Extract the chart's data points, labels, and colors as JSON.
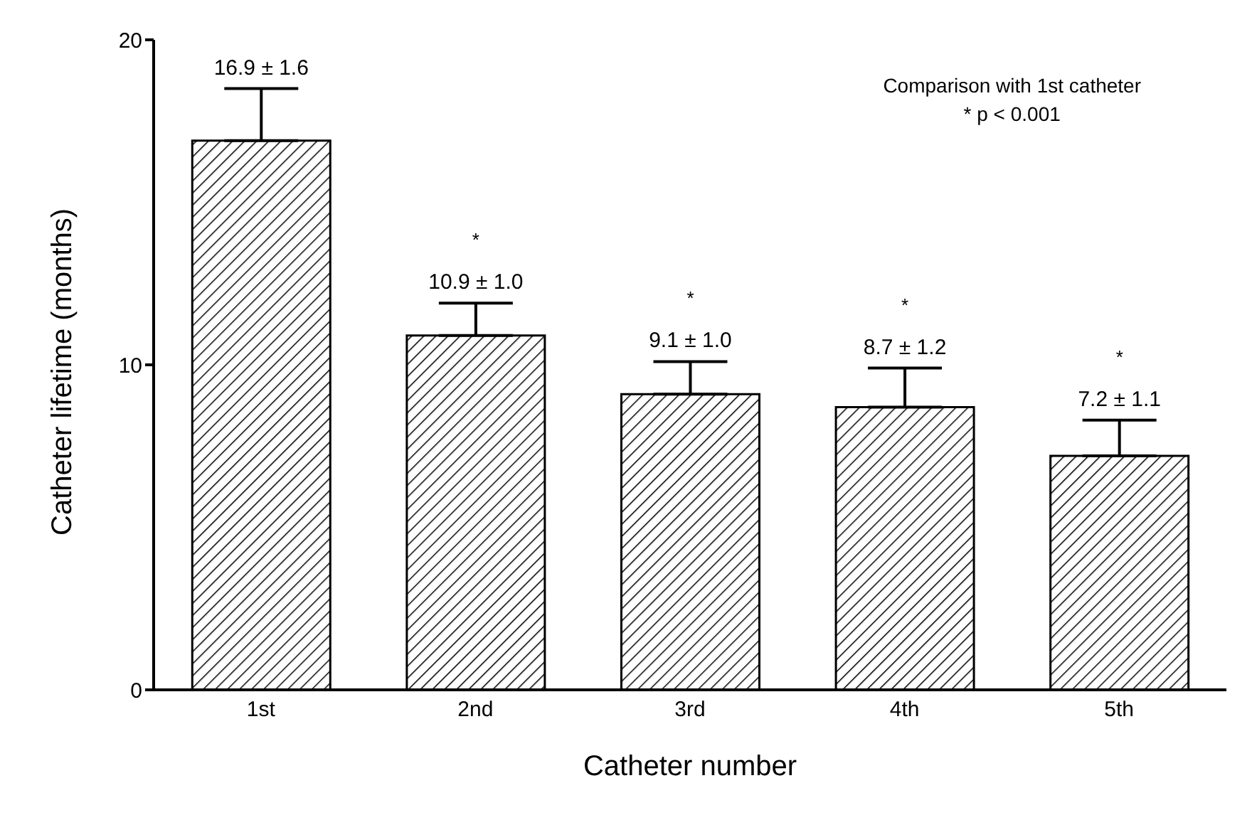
{
  "chart_data": {
    "type": "bar",
    "xlabel": "Catheter number",
    "ylabel": "Catheter lifetime (months)",
    "categories": [
      "1st",
      "2nd",
      "3rd",
      "4th",
      "5th"
    ],
    "values": [
      16.9,
      10.9,
      9.1,
      8.7,
      7.2
    ],
    "color": "#000000",
    "errors": [
      [
        16.9,
        18.5
      ],
      [
        10.9,
        11.9
      ],
      [
        9.1,
        10.1
      ],
      [
        8.7,
        9.9
      ],
      [
        7.2,
        8.3
      ]
    ],
    "value_labels": [
      "16.9 ± 1.6",
      "10.9 ± 1.0",
      "9.1 ± 1.0",
      "8.7 ± 1.2",
      "7.2 ± 1.1"
    ],
    "ylim": [
      0,
      20
    ],
    "yticks": [
      0,
      10,
      20
    ],
    "grid": false,
    "legend": false,
    "annotations": [
      "Comparison with 1st catheter",
      "* p < 0.001",
      "*",
      "*",
      "*",
      "*"
    ]
  }
}
